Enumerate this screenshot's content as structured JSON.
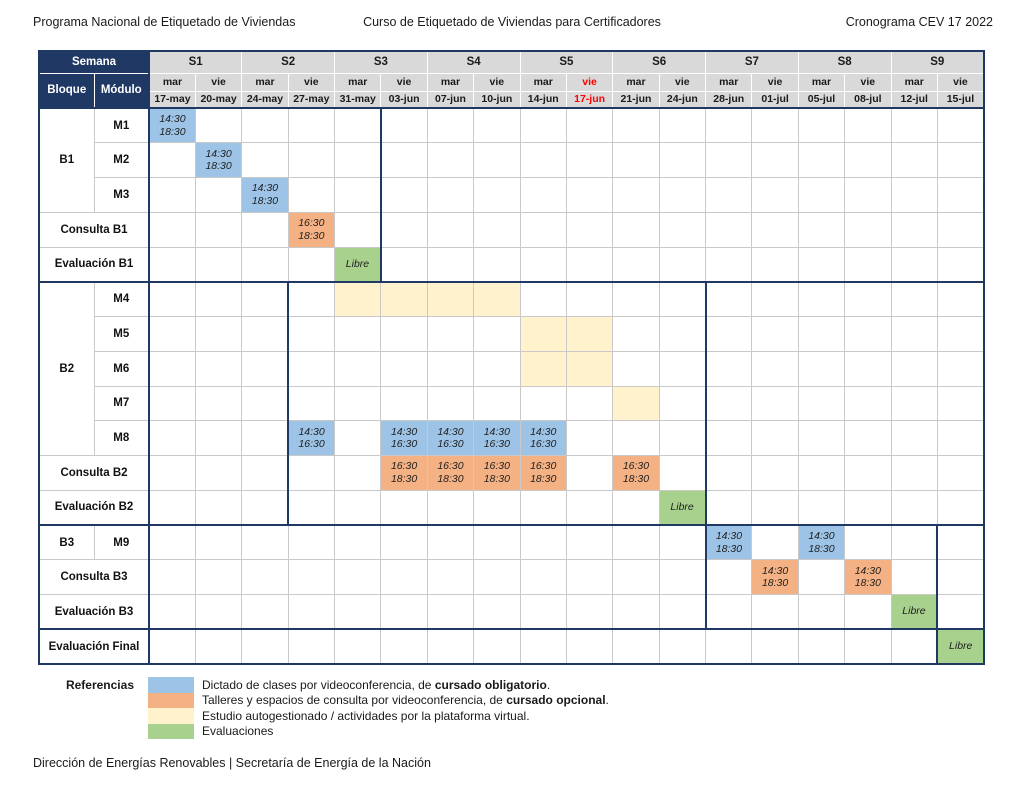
{
  "titles": {
    "left": "Programa Nacional de Etiquetado de Viviendas",
    "center": "Curso de Etiquetado de Viviendas para Certificadores",
    "right": "Cronograma CEV 17 2022"
  },
  "colors": {
    "navy": "#1F3864",
    "header_gray": "#D9D9D9",
    "grid_gray": "#C9C9C9",
    "blue": "#9DC3E6",
    "orange": "#F4B183",
    "yellow": "#FFF2CC",
    "green": "#A9D18E",
    "red": "#FF0000"
  },
  "table": {
    "semana_label": "Semana",
    "bloque_label": "Bloque",
    "modulo_label": "Módulo",
    "weeks": [
      "S1",
      "S2",
      "S3",
      "S4",
      "S5",
      "S6",
      "S7",
      "S8",
      "S9"
    ],
    "days": [
      {
        "day": "mar",
        "date": "17-may",
        "red": false
      },
      {
        "day": "vie",
        "date": "20-may",
        "red": false
      },
      {
        "day": "mar",
        "date": "24-may",
        "red": false
      },
      {
        "day": "vie",
        "date": "27-may",
        "red": false
      },
      {
        "day": "mar",
        "date": "31-may",
        "red": false
      },
      {
        "day": "vie",
        "date": "03-jun",
        "red": false
      },
      {
        "day": "mar",
        "date": "07-jun",
        "red": false
      },
      {
        "day": "vie",
        "date": "10-jun",
        "red": false
      },
      {
        "day": "mar",
        "date": "14-jun",
        "red": false
      },
      {
        "day": "vie",
        "date": "17-jun",
        "red": true
      },
      {
        "day": "mar",
        "date": "21-jun",
        "red": false
      },
      {
        "day": "vie",
        "date": "24-jun",
        "red": false
      },
      {
        "day": "mar",
        "date": "28-jun",
        "red": false
      },
      {
        "day": "vie",
        "date": "01-jul",
        "red": false
      },
      {
        "day": "mar",
        "date": "05-jul",
        "red": false
      },
      {
        "day": "vie",
        "date": "08-jul",
        "red": false
      },
      {
        "day": "mar",
        "date": "12-jul",
        "red": false
      },
      {
        "day": "vie",
        "date": "15-jul",
        "red": false
      }
    ],
    "sections": [
      {
        "name": "B1",
        "rows": [
          {
            "bloque": "B1",
            "bloque_rowspan": 3,
            "modulo": "M1",
            "cells": [
              {
                "col": 0,
                "color": "blue",
                "lines": [
                  "14:30",
                  "18:30"
                ]
              }
            ]
          },
          {
            "modulo": "M2",
            "cells": [
              {
                "col": 1,
                "color": "blue",
                "lines": [
                  "14:30",
                  "18:30"
                ]
              }
            ]
          },
          {
            "modulo": "M3",
            "cells": [
              {
                "col": 2,
                "color": "blue",
                "lines": [
                  "14:30",
                  "18:30"
                ]
              }
            ]
          },
          {
            "label": "Consulta B1",
            "cells": [
              {
                "col": 3,
                "color": "orange",
                "lines": [
                  "16:30",
                  "18:30"
                ]
              }
            ]
          },
          {
            "label": "Evaluación B1",
            "cells": [
              {
                "col": 4,
                "color": "green",
                "lines": [
                  "Libre"
                ]
              }
            ]
          }
        ]
      },
      {
        "name": "B2",
        "rows": [
          {
            "bloque": "B2",
            "bloque_rowspan": 5,
            "modulo": "M4",
            "cells": [
              {
                "col": 4,
                "color": "yellow",
                "lines": []
              },
              {
                "col": 5,
                "color": "yellow",
                "lines": []
              },
              {
                "col": 6,
                "color": "yellow",
                "lines": []
              },
              {
                "col": 7,
                "color": "yellow",
                "lines": []
              }
            ]
          },
          {
            "modulo": "M5",
            "cells": [
              {
                "col": 8,
                "color": "yellow",
                "lines": []
              },
              {
                "col": 9,
                "color": "yellow",
                "lines": []
              }
            ]
          },
          {
            "modulo": "M6",
            "cells": [
              {
                "col": 8,
                "color": "yellow",
                "lines": []
              },
              {
                "col": 9,
                "color": "yellow",
                "lines": []
              }
            ]
          },
          {
            "modulo": "M7",
            "cells": [
              {
                "col": 10,
                "color": "yellow",
                "lines": []
              }
            ]
          },
          {
            "modulo": "M8",
            "cells": [
              {
                "col": 3,
                "color": "blue",
                "lines": [
                  "14:30",
                  "16:30"
                ]
              },
              {
                "col": 5,
                "color": "blue",
                "lines": [
                  "14:30",
                  "16:30"
                ]
              },
              {
                "col": 6,
                "color": "blue",
                "lines": [
                  "14:30",
                  "16:30"
                ]
              },
              {
                "col": 7,
                "color": "blue",
                "lines": [
                  "14:30",
                  "16:30"
                ]
              },
              {
                "col": 8,
                "color": "blue",
                "lines": [
                  "14:30",
                  "16:30"
                ]
              }
            ]
          },
          {
            "label": "Consulta B2",
            "cells": [
              {
                "col": 5,
                "color": "orange",
                "lines": [
                  "16:30",
                  "18:30"
                ]
              },
              {
                "col": 6,
                "color": "orange",
                "lines": [
                  "16:30",
                  "18:30"
                ]
              },
              {
                "col": 7,
                "color": "orange",
                "lines": [
                  "16:30",
                  "18:30"
                ]
              },
              {
                "col": 8,
                "color": "orange",
                "lines": [
                  "16:30",
                  "18:30"
                ]
              },
              {
                "col": 10,
                "color": "orange",
                "lines": [
                  "16:30",
                  "18:30"
                ]
              }
            ]
          },
          {
            "label": "Evaluación B2",
            "cells": [
              {
                "col": 11,
                "color": "green",
                "lines": [
                  "Libre"
                ]
              }
            ]
          }
        ]
      },
      {
        "name": "B3",
        "rows": [
          {
            "bloque": "B3",
            "bloque_rowspan": 1,
            "modulo": "M9",
            "cells": [
              {
                "col": 12,
                "color": "blue",
                "lines": [
                  "14:30",
                  "18:30"
                ]
              },
              {
                "col": 14,
                "color": "blue",
                "lines": [
                  "14:30",
                  "18:30"
                ]
              }
            ]
          },
          {
            "label": "Consulta B3",
            "cells": [
              {
                "col": 13,
                "color": "orange",
                "lines": [
                  "14:30",
                  "18:30"
                ]
              },
              {
                "col": 15,
                "color": "orange",
                "lines": [
                  "14:30",
                  "18:30"
                ]
              }
            ]
          },
          {
            "label": "Evaluación B3",
            "cells": [
              {
                "col": 16,
                "color": "green",
                "lines": [
                  "Libre"
                ]
              }
            ]
          }
        ]
      },
      {
        "name": "Final",
        "rows": [
          {
            "label": "Evaluación Final",
            "cells": [
              {
                "col": 17,
                "color": "green",
                "lines": [
                  "Libre"
                ]
              }
            ]
          }
        ]
      }
    ]
  },
  "legend": {
    "title": "Referencias",
    "items": [
      {
        "color": "blue",
        "prefix": "Dictado de clases por videoconferencia, de ",
        "bold": "cursado obligatorio",
        "suffix": "."
      },
      {
        "color": "orange",
        "prefix": "Talleres y espacios de consulta por videoconferencia, de ",
        "bold": "cursado opcional",
        "suffix": "."
      },
      {
        "color": "yellow",
        "prefix": "Estudio autogestionado / actividades por la plataforma virtual.",
        "bold": "",
        "suffix": ""
      },
      {
        "color": "green",
        "prefix": "Evaluaciones",
        "bold": "",
        "suffix": ""
      }
    ]
  },
  "footer": "Dirección de Energías Renovables | Secretaría de Energía de la Nación"
}
